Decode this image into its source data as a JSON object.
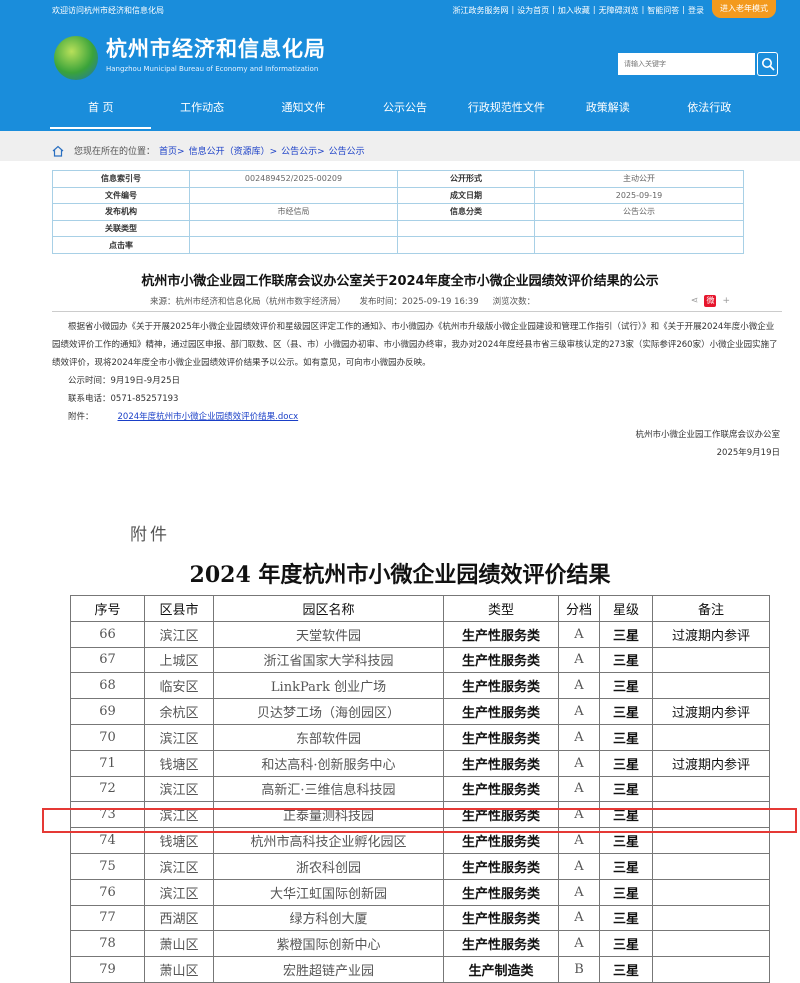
{
  "header": {
    "welcome": "欢迎访问杭州市经济和信息化局",
    "top_links": [
      "浙江政务服务网",
      "设为首页",
      "加入收藏",
      "无障碍浏览",
      "智能问答",
      "登录"
    ],
    "elder_mode": "进入老年模式",
    "title": "杭州市经济和信息化局",
    "subtitle": "Hangzhou Municipal Bureau of Economy and Informatization",
    "search_placeholder": "请输入关键字",
    "accent": "#1a8ddb"
  },
  "nav": [
    "首 页",
    "工作动态",
    "通知文件",
    "公示公告",
    "行政规范性文件",
    "政策解读",
    "依法行政"
  ],
  "breadcrumb": {
    "prefix": "您现在所在的位置：",
    "items": [
      "首页>",
      "信息公开（资源库）>",
      "公告公示>",
      "公告公示"
    ]
  },
  "info": {
    "rows": [
      [
        "信息索引号",
        "002489452/2025-00209",
        "公开形式",
        "主动公开"
      ],
      [
        "文件编号",
        "",
        "成文日期",
        "2025-09-19"
      ],
      [
        "发布机构",
        "市经信局",
        "信息分类",
        "公告公示"
      ],
      [
        "关联类型",
        ""
      ],
      [
        "点击率",
        ""
      ]
    ]
  },
  "article": {
    "title": "杭州市小微企业园工作联席会议办公室关于2024年度全市小微企业园绩效评价结果的公示",
    "source": "来源：杭州市经济和信息化局（杭州市数字经济局）",
    "published": "发布时间：2025-09-19 16:39",
    "views": "浏览次数：",
    "body": "根据省小微园办《关于开展2025年小微企业园绩效评价和星级园区评定工作的通知》、市小微园办《杭州市升级版小微企业园建设和管理工作指引（试行）》和《关于开展2024年度小微企业园绩效评价工作的通知》精神，通过园区申报、部门取数、区（县、市）小微园办初审、市小微园办终审，我办对2024年度经县市省三级审核认定的273家（实际参评260家）小微企业园实施了绩效评价，现将2024年度全市小微企业园绩效评价结果予以公示。如有意见，可向市小微园办反映。",
    "period": "公示时间：9月19日-9月25日",
    "phone": "联系电话：0571-85257193",
    "attach_label": "附件：",
    "attach_link": "2024年度杭州市小微企业园绩效评价结果.docx",
    "signer": "杭州市小微企业园工作联席会议办公室",
    "date": "2025年9月19日"
  },
  "doc": {
    "label": "附件",
    "title": "2024 年度杭州市小微企业园绩效评价结果",
    "headers": [
      "序号",
      "区县市",
      "园区名称",
      "类型",
      "分档",
      "星级",
      "备注"
    ],
    "rows": [
      [
        "66",
        "滨江区",
        "天堂软件园",
        "生产性服务类",
        "A",
        "三星",
        "过渡期内参评"
      ],
      [
        "67",
        "上城区",
        "浙江省国家大学科技园",
        "生产性服务类",
        "A",
        "三星",
        ""
      ],
      [
        "68",
        "临安区",
        "LinkPark 创业广场",
        "生产性服务类",
        "A",
        "三星",
        ""
      ],
      [
        "69",
        "余杭区",
        "贝达梦工场（海创园区）",
        "生产性服务类",
        "A",
        "三星",
        "过渡期内参评"
      ],
      [
        "70",
        "滨江区",
        "东部软件园",
        "生产性服务类",
        "A",
        "三星",
        ""
      ],
      [
        "71",
        "钱塘区",
        "和达高科·创新服务中心",
        "生产性服务类",
        "A",
        "三星",
        "过渡期内参评"
      ],
      [
        "72",
        "滨江区",
        "高新汇·三维信息科技园",
        "生产性服务类",
        "A",
        "三星",
        ""
      ],
      [
        "73",
        "滨江区",
        "正泰量测科技园",
        "生产性服务类",
        "A",
        "三星",
        ""
      ],
      [
        "74",
        "钱塘区",
        "杭州市高科技企业孵化园区",
        "生产性服务类",
        "A",
        "三星",
        ""
      ],
      [
        "75",
        "滨江区",
        "浙农科创园",
        "生产性服务类",
        "A",
        "三星",
        ""
      ],
      [
        "76",
        "滨江区",
        "大华江虹国际创新园",
        "生产性服务类",
        "A",
        "三星",
        ""
      ],
      [
        "77",
        "西湖区",
        "绿方科创大厦",
        "生产性服务类",
        "A",
        "三星",
        ""
      ],
      [
        "78",
        "萧山区",
        "紫橙国际创新中心",
        "生产性服务类",
        "A",
        "三星",
        ""
      ],
      [
        "79",
        "萧山区",
        "宏胜超链产业园",
        "生产制造类",
        "B",
        "三星",
        ""
      ]
    ],
    "highlight_color": "#e53935"
  }
}
